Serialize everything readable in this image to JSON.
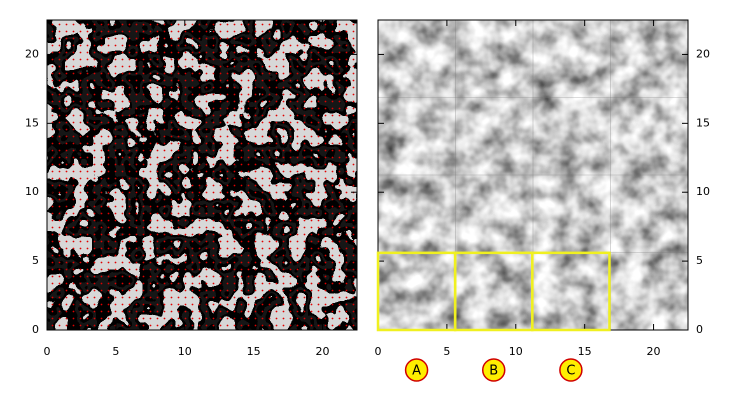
{
  "chart_data": [
    {
      "type": "image",
      "xlim": [
        0,
        22.5
      ],
      "ylim": [
        0,
        22.5
      ],
      "xticks": [
        0,
        5,
        10,
        15,
        20
      ],
      "yticks": [
        0,
        5,
        10,
        15,
        20
      ],
      "ytick_side": "left",
      "overlay_dots": true
    },
    {
      "type": "image",
      "xlim": [
        0,
        22.5
      ],
      "ylim": [
        0,
        22.5
      ],
      "xticks": [
        0,
        5,
        10,
        15,
        20
      ],
      "yticks": [
        0,
        5,
        10,
        15,
        20
      ],
      "ytick_side": "right",
      "overlay_dots": false,
      "boxes": [
        {
          "label": "A",
          "x": [
            0,
            5.6
          ],
          "y": [
            0,
            5.6
          ]
        },
        {
          "label": "B",
          "x": [
            5.6,
            11.2
          ],
          "y": [
            0,
            5.6
          ]
        },
        {
          "label": "C",
          "x": [
            11.2,
            16.8
          ],
          "y": [
            0,
            5.6
          ]
        }
      ]
    }
  ]
}
